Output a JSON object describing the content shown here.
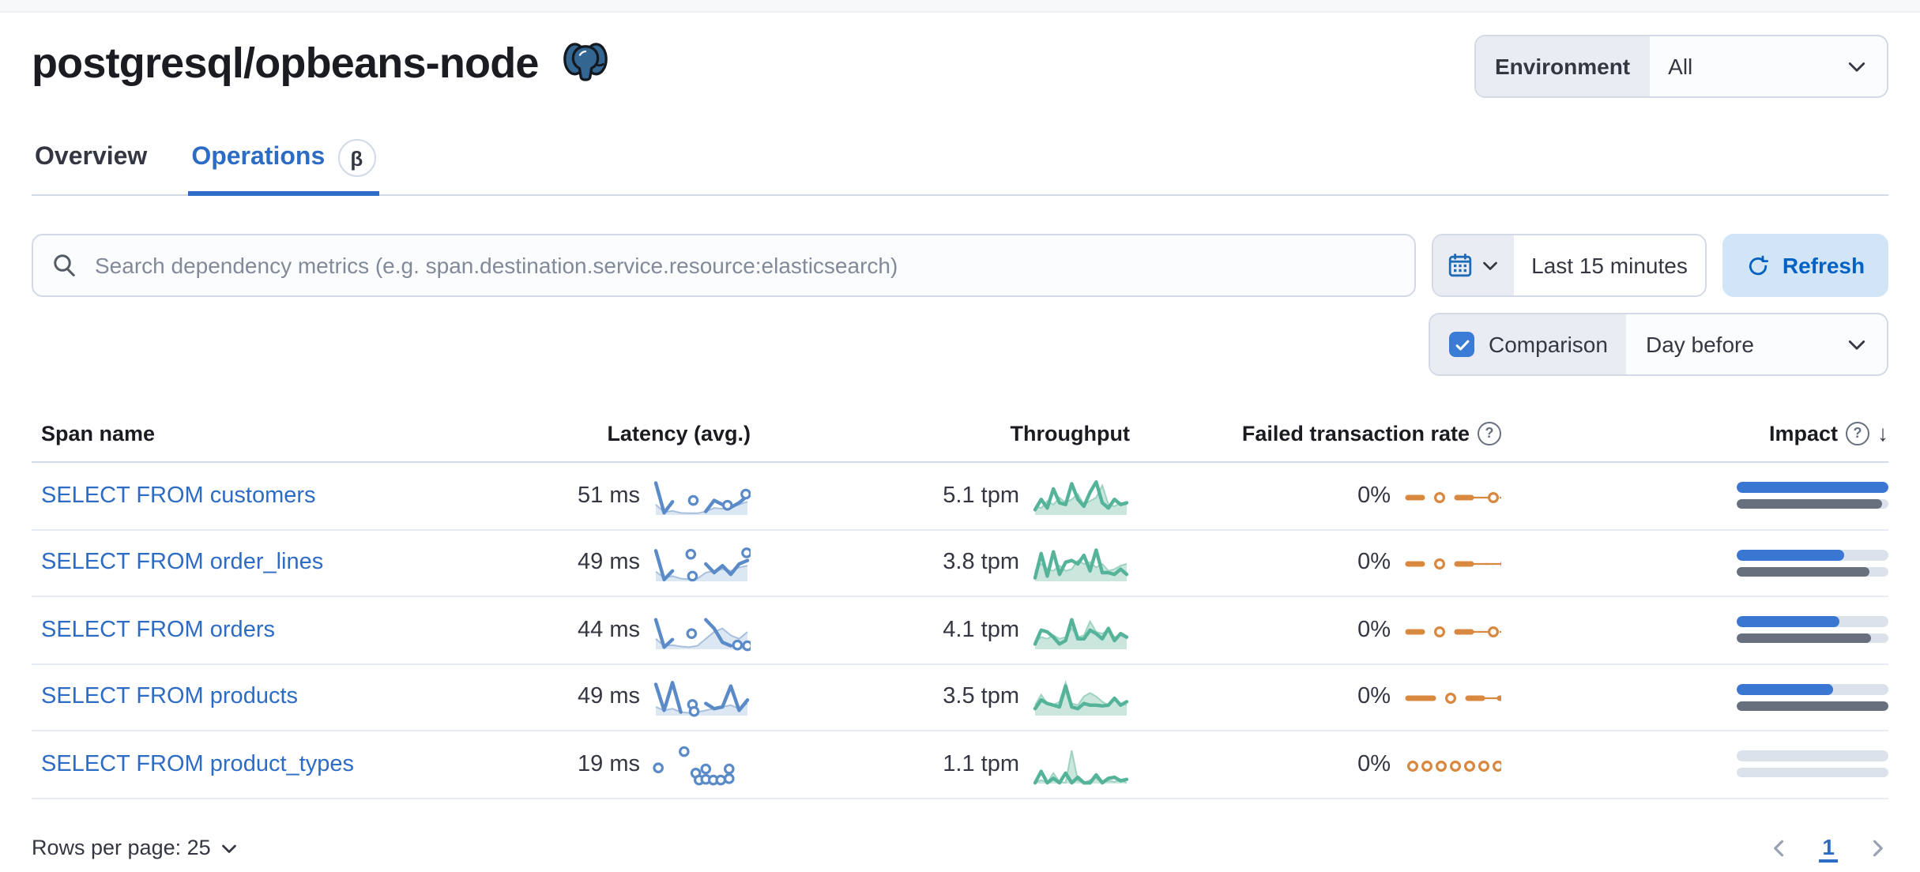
{
  "page": {
    "title": "postgresql/opbeans-node"
  },
  "header": {
    "environment_label": "Environment",
    "environment_value": "All"
  },
  "tabs": [
    {
      "label": "Overview",
      "active": false
    },
    {
      "label": "Operations",
      "active": true,
      "beta_badge": "β"
    }
  ],
  "toolbar": {
    "search_placeholder": "Search dependency metrics (e.g. span.destination.service.resource:elasticsearch)",
    "time_range": "Last 15 minutes",
    "refresh_label": "Refresh",
    "comparison_label": "Comparison",
    "comparison_checked": true,
    "comparison_value": "Day before"
  },
  "table": {
    "columns": [
      "Span name",
      "Latency (avg.)",
      "Throughput",
      "Failed transaction rate",
      "Impact"
    ],
    "rows": [
      {
        "span_name": "SELECT FROM customers",
        "latency": "51 ms",
        "throughput": "5.1 tpm",
        "failed_rate": "0%",
        "latency_spark": {
          "curr": [
            0.92,
            0.06,
            0.38,
            null,
            null,
            null,
            0.1,
            0.42,
            0.3,
            0.22,
            0.35,
            0.55
          ],
          "prev": [
            0.3,
            0.08,
            0.12,
            0.06,
            0.05,
            0.05,
            0.1,
            0.2,
            0.18,
            0.22,
            0.3,
            0.38
          ],
          "markers": [
            [
              4.5,
              0.42
            ],
            [
              8.6,
              0.28
            ],
            [
              10.8,
              0.6
            ]
          ]
        },
        "throughput_spark": {
          "curr": [
            0.15,
            0.45,
            0.2,
            0.75,
            0.35,
            0.3,
            0.9,
            0.45,
            0.25,
            0.65,
            0.95,
            0.35,
            0.2,
            0.45,
            0.3,
            0.35
          ],
          "prev": [
            0.25,
            0.2,
            0.4,
            0.3,
            0.5,
            0.35,
            0.45,
            0.6,
            0.3,
            0.4,
            0.5,
            0.85,
            0.3,
            0.25,
            0.35,
            0.3
          ]
        },
        "failed_spark": "- o -~o~o",
        "impact": {
          "current": 100,
          "previous": 96
        }
      },
      {
        "span_name": "SELECT FROM order_lines",
        "latency": "49 ms",
        "throughput": "3.8 tpm",
        "failed_rate": "0%",
        "latency_spark": {
          "curr": [
            0.88,
            0.05,
            0.3,
            null,
            null,
            null,
            0.5,
            0.25,
            0.45,
            0.2,
            0.5,
            0.6
          ],
          "prev": [
            0.28,
            0.1,
            0.15,
            0.08,
            0.06,
            0.08,
            0.25,
            0.3,
            0.35,
            0.3,
            0.4,
            0.45
          ],
          "markers": [
            [
              4.2,
              0.78
            ],
            [
              4.4,
              0.15
            ],
            [
              10.9,
              0.82
            ]
          ]
        },
        "throughput_spark": {
          "curr": [
            0.1,
            0.8,
            0.15,
            0.85,
            0.2,
            0.55,
            0.6,
            0.5,
            0.75,
            0.3,
            0.9,
            0.25,
            0.25,
            0.2,
            0.35,
            0.2
          ],
          "prev": [
            0.3,
            0.5,
            0.35,
            0.3,
            0.45,
            0.3,
            0.35,
            0.6,
            0.5,
            0.55,
            0.4,
            0.5,
            0.3,
            0.35,
            0.45,
            0.5
          ]
        },
        "failed_spark": "- o -~~o~",
        "impact": {
          "current": 71,
          "previous": 88
        }
      },
      {
        "span_name": "SELECT FROM orders",
        "latency": "44 ms",
        "throughput": "4.1 tpm",
        "failed_rate": "0%",
        "latency_spark": {
          "curr": [
            0.85,
            0.06,
            0.28,
            null,
            null,
            null,
            0.85,
            0.6,
            0.2,
            0.1,
            null,
            null
          ],
          "prev": [
            0.3,
            0.1,
            0.12,
            0.08,
            0.06,
            0.1,
            0.3,
            0.5,
            0.6,
            0.4,
            0.3,
            0.5
          ],
          "markers": [
            [
              4.3,
              0.45
            ],
            [
              9.8,
              0.12
            ],
            [
              11,
              0.1
            ]
          ]
        },
        "throughput_spark": {
          "curr": [
            0.15,
            0.55,
            0.5,
            0.35,
            0.15,
            0.25,
            0.85,
            0.3,
            0.3,
            0.55,
            0.45,
            0.3,
            0.6,
            0.25,
            0.45,
            0.35
          ],
          "prev": [
            0.2,
            0.35,
            0.3,
            0.4,
            0.3,
            0.35,
            0.6,
            0.35,
            0.4,
            0.8,
            0.5,
            0.45,
            0.55,
            0.35,
            0.4,
            0.3
          ]
        },
        "failed_spark": "- o -~o~o",
        "impact": {
          "current": 68,
          "previous": 89
        }
      },
      {
        "span_name": "SELECT FROM products",
        "latency": "49 ms",
        "throughput": "3.5 tpm",
        "failed_rate": "0%",
        "latency_spark": {
          "curr": [
            0.9,
            0.15,
            0.95,
            0.1,
            null,
            null,
            0.35,
            0.2,
            0.25,
            0.85,
            0.15,
            0.45
          ],
          "prev": [
            0.25,
            0.15,
            0.2,
            0.1,
            0.08,
            0.1,
            0.15,
            0.2,
            0.25,
            0.3,
            0.2,
            0.35
          ],
          "markers": [
            [
              4.4,
              0.32
            ],
            [
              4.6,
              0.12
            ]
          ]
        },
        "throughput_spark": {
          "curr": [
            0.2,
            0.45,
            0.35,
            0.3,
            0.25,
            0.85,
            0.25,
            0.2,
            0.35,
            0.3,
            0.3,
            0.28,
            0.3,
            0.5,
            0.3,
            0.4
          ],
          "prev": [
            0.3,
            0.6,
            0.35,
            0.3,
            0.4,
            0.95,
            0.35,
            0.3,
            0.55,
            0.65,
            0.55,
            0.4,
            0.3,
            0.45,
            0.35,
            0.3
          ]
        },
        "failed_spark": "= o -~-",
        "impact": {
          "current": 64,
          "previous": 100
        }
      },
      {
        "span_name": "SELECT FROM product_types",
        "latency": "19 ms",
        "throughput": "1.1 tpm",
        "failed_rate": "0%",
        "latency_spark": {
          "curr": [
            null,
            null,
            null,
            null,
            null,
            null,
            null,
            null,
            null,
            null,
            null,
            null
          ],
          "prev": [],
          "markers": [
            [
              0.3,
              0.45
            ],
            [
              3.4,
              0.92
            ],
            [
              4.8,
              0.3
            ],
            [
              5.2,
              0.1
            ],
            [
              6.0,
              0.42
            ],
            [
              6.0,
              0.12
            ],
            [
              6.9,
              0.1
            ],
            [
              7.8,
              0.1
            ],
            [
              8.8,
              0.42
            ],
            [
              8.8,
              0.14
            ]
          ]
        },
        "throughput_spark": {
          "curr": [
            0.02,
            0.35,
            0.02,
            0.15,
            0.02,
            0.3,
            0.02,
            0.18,
            0.02,
            0.02,
            0.25,
            0.02,
            0.15,
            0.18,
            0.08,
            0.12
          ],
          "prev": [
            0.02,
            0.1,
            0.02,
            0.3,
            0.05,
            0.02,
            0.95,
            0.08,
            0.02,
            0.1,
            0.15,
            0.02,
            0.08,
            0.05,
            0.1,
            0.02
          ]
        },
        "failed_spark": "ooooooo",
        "impact": {
          "current": 0,
          "previous": 0
        }
      }
    ]
  },
  "footer": {
    "rows_per_page": "Rows per page: 25",
    "page_number": "1"
  },
  "icons": {
    "search": "magnifier",
    "calendar": "calendar",
    "chevron_down": "chevron-down",
    "refresh": "refresh-arrow",
    "question": "?",
    "sort_descending": "↓",
    "prev_page": "chevron-left",
    "next_page": "chevron-right",
    "postgresql_logo": "elephant"
  },
  "colors": {
    "link_blue": "#2d6cc4",
    "checkbox_blue": "#3a7bd5",
    "refresh_bg": "#d2e5f6",
    "refresh_text": "#0061c5",
    "latency_line": "#5a8ac7",
    "latency_fill": "#dce7f4",
    "throughput_line": "#54b399",
    "throughput_fill": "#cbe6dd",
    "failed_orange": "#d9893f",
    "impact_current": "#3a77d2",
    "impact_previous": "#69707d",
    "impact_track": "#dce2ec",
    "border": "#d3dae6"
  }
}
